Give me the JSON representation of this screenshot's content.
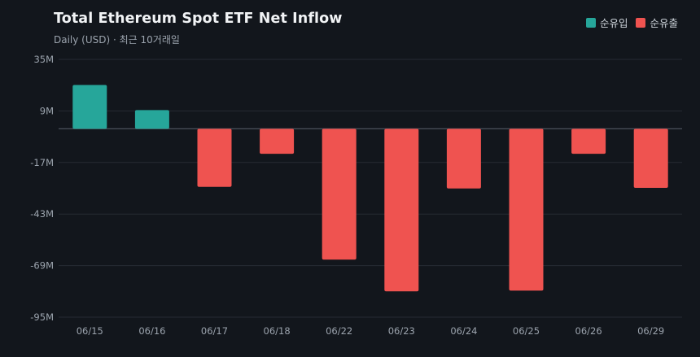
{
  "title": "Total Ethereum Spot ETF Net Inflow",
  "subtitle": "Daily (USD) · 최근 10거래일",
  "legend": [
    {
      "label": "순유입",
      "color": "#26a69a"
    },
    {
      "label": "순유출",
      "color": "#ef5350"
    }
  ],
  "colors": {
    "background": "#12161c",
    "grid": "#262b33",
    "zero_line": "#4a515b",
    "positive": "#26a69a",
    "negative": "#ef5350"
  },
  "chart_data": {
    "type": "bar",
    "title": "Total Ethereum Spot ETF Net Inflow",
    "subtitle": "Daily (USD) · 최근 10거래일",
    "xlabel": "",
    "ylabel": "",
    "categories": [
      "06/15",
      "06/16",
      "06/17",
      "06/18",
      "06/22",
      "06/23",
      "06/24",
      "06/25",
      "06/26",
      "06/29"
    ],
    "values": [
      22.1,
      9.4,
      -29.3,
      -12.6,
      -66.0,
      -82.0,
      -30.1,
      -81.6,
      -12.6,
      -29.8
    ],
    "unit": "M",
    "ylim": [
      -95,
      35
    ],
    "yticks": [
      35,
      9,
      -17,
      -43,
      -69,
      -95
    ],
    "ytick_labels": [
      "35M",
      "9M",
      "-17M",
      "-43M",
      "-69M",
      "-95M"
    ],
    "grid": true,
    "legend_position": "top-right"
  }
}
